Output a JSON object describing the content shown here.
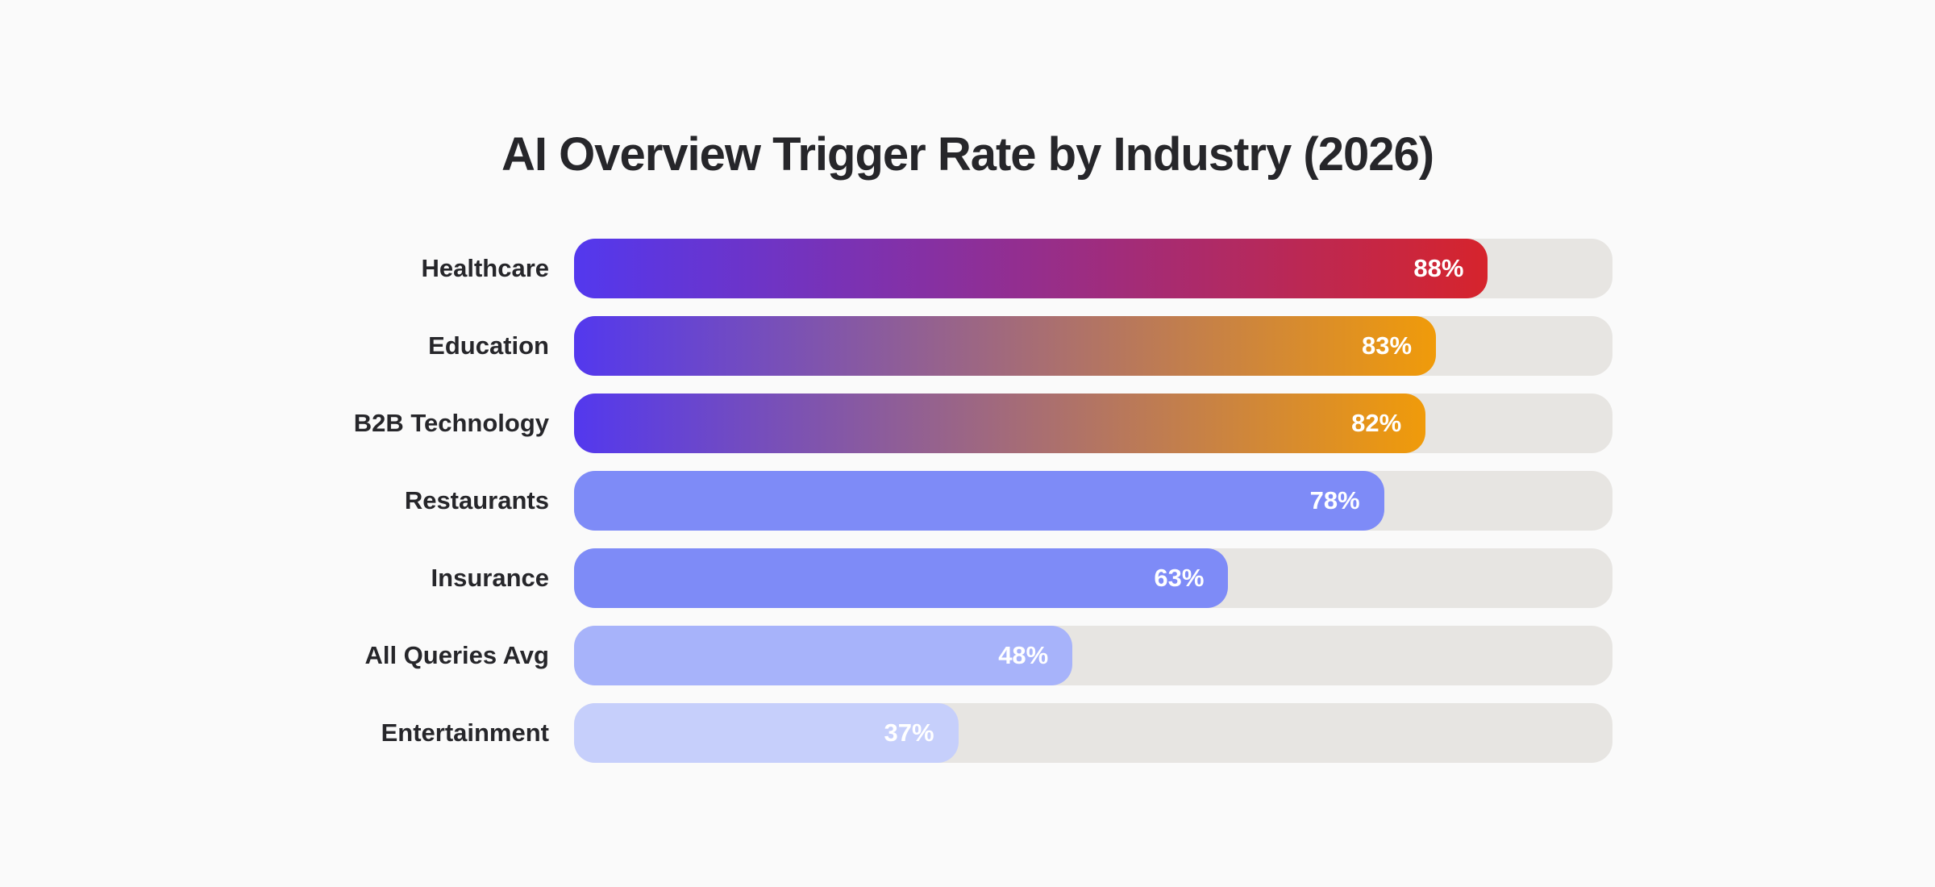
{
  "page": {
    "background_color": "#fafafa",
    "title_color": "#26262a",
    "label_color": "#26262a"
  },
  "chart_data": {
    "type": "bar",
    "orientation": "horizontal",
    "title": "AI Overview Trigger Rate by Industry (2026)",
    "categories": [
      "Healthcare",
      "Education",
      "B2B Technology",
      "Restaurants",
      "Insurance",
      "All Queries Avg",
      "Entertainment"
    ],
    "values": [
      88,
      83,
      82,
      78,
      63,
      48,
      37
    ],
    "xlim": [
      0,
      100
    ],
    "grid": false,
    "legend": false,
    "track_color": "#e7e5e2",
    "value_label_color": "#ffffff",
    "bars": [
      {
        "label": "Healthcare",
        "value": 88,
        "display": "88%",
        "fill": {
          "type": "gradient",
          "from": "#5338ee",
          "to": "#d6242c"
        }
      },
      {
        "label": "Education",
        "value": 83,
        "display": "83%",
        "fill": {
          "type": "gradient",
          "from": "#5338ee",
          "to": "#f09b0a"
        }
      },
      {
        "label": "B2B Technology",
        "value": 82,
        "display": "82%",
        "fill": {
          "type": "gradient",
          "from": "#5338ee",
          "to": "#f09b0a"
        }
      },
      {
        "label": "Restaurants",
        "value": 78,
        "display": "78%",
        "fill": {
          "type": "solid",
          "color": "#7e8bf7"
        }
      },
      {
        "label": "Insurance",
        "value": 63,
        "display": "63%",
        "fill": {
          "type": "solid",
          "color": "#7e8bf7"
        }
      },
      {
        "label": "All Queries Avg",
        "value": 48,
        "display": "48%",
        "fill": {
          "type": "solid",
          "color": "#a7b3fa"
        }
      },
      {
        "label": "Entertainment",
        "value": 37,
        "display": "37%",
        "fill": {
          "type": "solid",
          "color": "#c6cffb"
        }
      }
    ]
  }
}
